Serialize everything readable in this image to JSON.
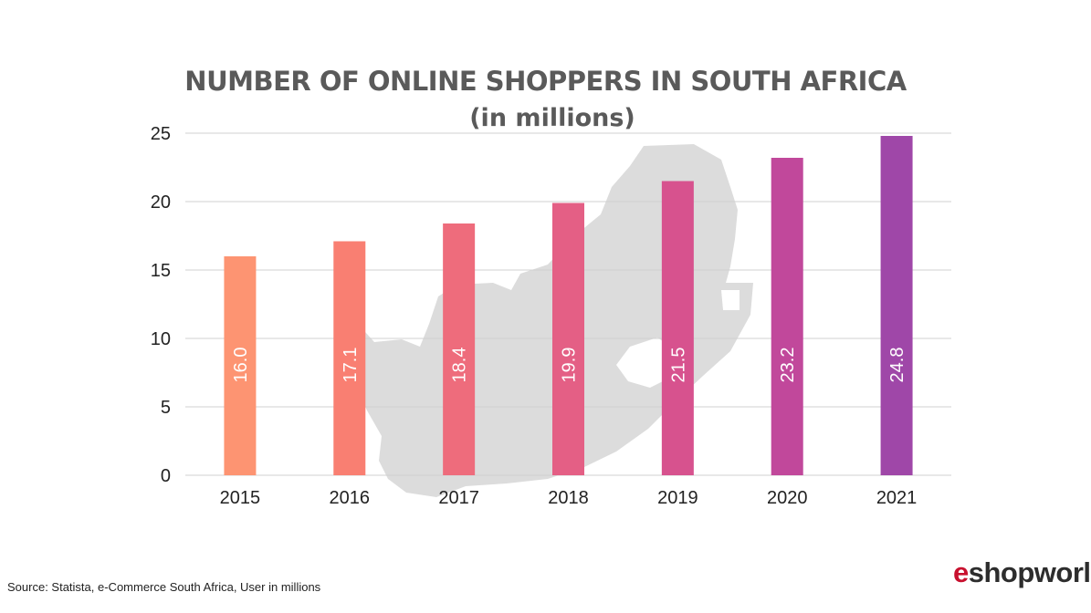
{
  "chart_data": {
    "type": "bar",
    "title": "NUMBER OF ONLINE SHOPPERS IN SOUTH AFRICA",
    "subtitle": "(in millions)",
    "categories": [
      "2015",
      "2016",
      "2017",
      "2018",
      "2019",
      "2020",
      "2021"
    ],
    "values": [
      16.0,
      17.1,
      18.4,
      19.9,
      21.5,
      23.2,
      24.8
    ],
    "data_labels": [
      "16.0",
      "17.1",
      "18.4",
      "19.9",
      "21.5",
      "23.2",
      "24.8"
    ],
    "bar_colors": [
      "#fd9472",
      "#f97f72",
      "#ee6c7c",
      "#e45f85",
      "#d7528e",
      "#c1489b",
      "#9f47a8"
    ],
    "y_ticks": [
      0,
      5,
      10,
      15,
      20,
      25
    ],
    "ylim": [
      0,
      25
    ],
    "grid": true,
    "xlabel": "",
    "ylabel": "",
    "background_graphic": "south-africa-map"
  },
  "footer": {
    "source": "Source: Statista, e-Commerce South Africa, User in millions",
    "logo_e": "e",
    "logo_rest": "shopworld"
  },
  "colors": {
    "title": "#5a5a5a",
    "grid": "#d0d0d0",
    "map": "#dcdcdc",
    "logo_red": "#c8102e"
  }
}
